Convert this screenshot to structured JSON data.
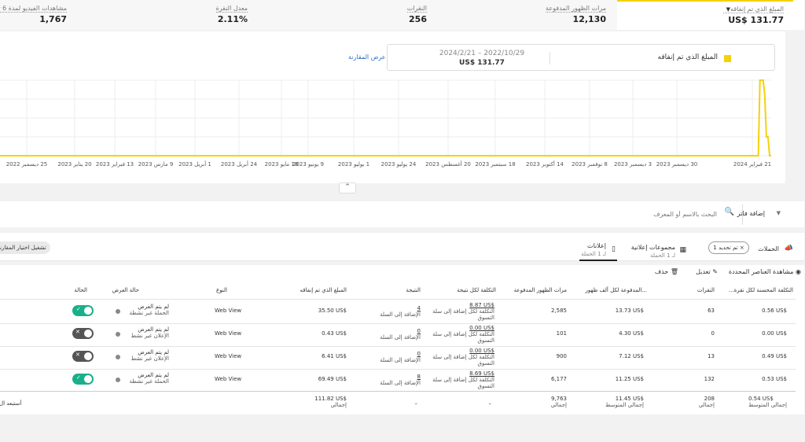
{
  "kpis": [
    {
      "label": "المبلغ الذي تم إنفاقه",
      "value": "US$ 131.77",
      "selected": true
    },
    {
      "label": "مرات الظهور المدفوعة",
      "value": "12,130"
    },
    {
      "label": "النقرات",
      "value": "256"
    },
    {
      "label": "معدل النقرة",
      "value": "2.11%"
    },
    {
      "label": "مشاهدات الفيديو لمدة 6 ثوانٍ",
      "value": "1,767"
    }
  ],
  "chart": {
    "legend_label": "المبلغ الذي تم إنفاقه",
    "date_range": "2024/2/21 – 2022/10/29",
    "range_value": "US$ 131.77",
    "compare_link": "عرض المقارنة"
  },
  "chart_data": {
    "type": "line",
    "series_color": "#f5d10b",
    "x_ticks": [
      "21 فبراير 2024",
      "30 ديسمبر 2023",
      "3 ديسمبر 2023",
      "8 نوفمبر 2023",
      "14 أكتوبر 2023",
      "18 سبتمبر 2023",
      "20 أغسطس 2023",
      "24 يوليو 2023",
      "1 يوليو 2023",
      "9 يونيو 2023",
      "18 مايو 2023",
      "24 أبريل 2023",
      "1 أبريل 2023",
      "9 مارس 2023",
      "13 فبراير 2023",
      "20 يناير 2023",
      "25 ديسمبر 2022"
    ],
    "points": [
      {
        "x": "2022-10-29",
        "y": 0
      },
      {
        "x": "2024-02-13",
        "y": 0
      },
      {
        "x": "2024-02-14",
        "y": 1.0
      },
      {
        "x": "2024-02-16",
        "y": 1.0
      },
      {
        "x": "2024-02-17",
        "y": 0.8
      },
      {
        "x": "2024-02-18",
        "y": 0.25
      },
      {
        "x": "2024-02-19",
        "y": 0.25
      },
      {
        "x": "2024-02-20",
        "y": 0
      },
      {
        "x": "2024-02-21",
        "y": 0
      }
    ],
    "grid": true
  },
  "filter": {
    "add_filter": "إضافة فلتر",
    "search_placeholder": "البحث بالاسم أو المعرف"
  },
  "tabs": {
    "campaigns": "الحملات",
    "selection_chip": "تم تحديد 1",
    "ad_sets": "مجموعات إعلانية",
    "ad_sets_sub": "لـ 1 الحملة",
    "ads": "إعلانات",
    "ads_sub": "لـ 1 الحملة",
    "compare_button": "تشغيل اختيار المقارنة"
  },
  "actions": {
    "view_selected": "مشاهدة العناصر المحددة",
    "edit": "تعديل",
    "delete": "حذف"
  },
  "table": {
    "headers": {
      "cpc": "التكلفة المحسنة لكل نقرة...",
      "clicks": "النقرات",
      "cpm": "...المدفوعة لكل ألف ظهور",
      "impressions": "مرات الظهور المدفوعة",
      "cpr": "التكلفة لكل نتيجة",
      "result": "النتيجة",
      "spent": "المبلغ الذي تم إنفاقه",
      "type": "النوع",
      "status": "حالة العرض",
      "state": "الحالة"
    },
    "rows": [
      {
        "cpc": "0.56 US$",
        "clicks": "63",
        "cpm": "13.73 US$",
        "impressions": "2,585",
        "cpr": "8.87 US$",
        "cpr_sub": "التكلفة لكل إضافة إلى سلة التسوق",
        "result": "4",
        "result_sub": "الإضافة إلى السلة",
        "spent": "35.50 US$",
        "type": "Web View",
        "status1": "لم يتم العرض",
        "status2": "الحملة غير نشطة",
        "state": "on"
      },
      {
        "cpc": "0.00 US$",
        "clicks": "0",
        "cpm": "4.30 US$",
        "impressions": "101",
        "cpr": "0.00 US$",
        "cpr_sub": "التكلفة لكل إضافة إلى سلة التسوق",
        "result": "0",
        "result_sub": "الإضافة إلى السلة",
        "spent": "0.43 US$",
        "type": "Web View",
        "status1": "لم يتم العرض",
        "status2": "الإعلان غير نشط",
        "state": "off"
      },
      {
        "cpc": "0.49 US$",
        "clicks": "13",
        "cpm": "7.12 US$",
        "impressions": "900",
        "cpr": "0.00 US$",
        "cpr_sub": "التكلفة لكل إضافة إلى سلة التسوق",
        "result": "0",
        "result_sub": "الإضافة إلى السلة",
        "spent": "6.41 US$",
        "type": "Web View",
        "status1": "لم يتم العرض",
        "status2": "الإعلان غير نشط",
        "state": "off"
      },
      {
        "cpc": "0.53 US$",
        "clicks": "132",
        "cpm": "11.25 US$",
        "impressions": "6,177",
        "cpr": "8.69 US$",
        "cpr_sub": "التكلفة لكل إضافة إلى سلة التسوق",
        "result": "8",
        "result_sub": "الإضافة إلى السلة",
        "spent": "69.49 US$",
        "type": "Web View",
        "status1": "لم يتم العرض",
        "status2": "الحملة غير نشطة",
        "state": "on"
      }
    ],
    "totals": {
      "cpc": "0.54 US$",
      "cpc_label": "إجمالي المتوسط",
      "clicks": "208",
      "clicks_label": "إجمالي",
      "cpm": "11.45 US$",
      "cpm_label": "إجمالي المتوسط",
      "impressions": "9,763",
      "impressions_label": "إجمالي",
      "cpr": "–",
      "result": "–",
      "spent": "111.82 US$",
      "spent_label": "إجمالي",
      "excluded": "أستبعد ال"
    }
  }
}
